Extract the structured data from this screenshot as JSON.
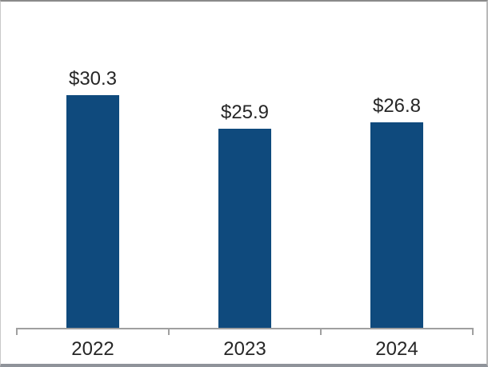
{
  "chart_data": {
    "type": "bar",
    "title": "",
    "categories": [
      "2022",
      "2023",
      "2024"
    ],
    "values": [
      30.3,
      25.9,
      26.8
    ],
    "value_labels": [
      "$30.3",
      "$25.9",
      "$26.8"
    ],
    "ylim": [
      0,
      31
    ],
    "grid": false,
    "legend": false,
    "axis": "x-axis only, category ticks at segment boundaries",
    "colors": {
      "bar": "#0F4A7D",
      "axis": "#A0A0A0",
      "text": "#262626",
      "background": "#FFFFFF"
    }
  }
}
